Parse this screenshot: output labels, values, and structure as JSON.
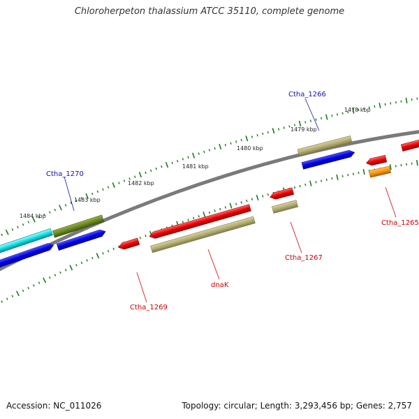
{
  "title": "Chloroherpeton thalassium ATCC 35110, complete genome",
  "footer": {
    "accession": "Accession: NC_011026",
    "summary": "Topology: circular; Length: 3,293,456 bp; Genes: 2,757"
  },
  "colors": {
    "backbone": "#808080",
    "tick": "#1a7a1a",
    "forward_label": "#1010b0",
    "reverse_label": "#cc0000"
  },
  "kbp_labels": [
    "1478 kbp",
    "1479 kbp",
    "1480 kbp",
    "1481 kbp",
    "1482 kbp",
    "1483 kbp",
    "1484 kbp"
  ],
  "gene_labels": {
    "ctha_1266": "Ctha_1266",
    "ctha_1270": "Ctha_1270",
    "ctha_1265": "Ctha_1265",
    "ctha_1267": "Ctha_1267",
    "ctha_1269": "Ctha_1269",
    "dnak": "dnaK"
  }
}
